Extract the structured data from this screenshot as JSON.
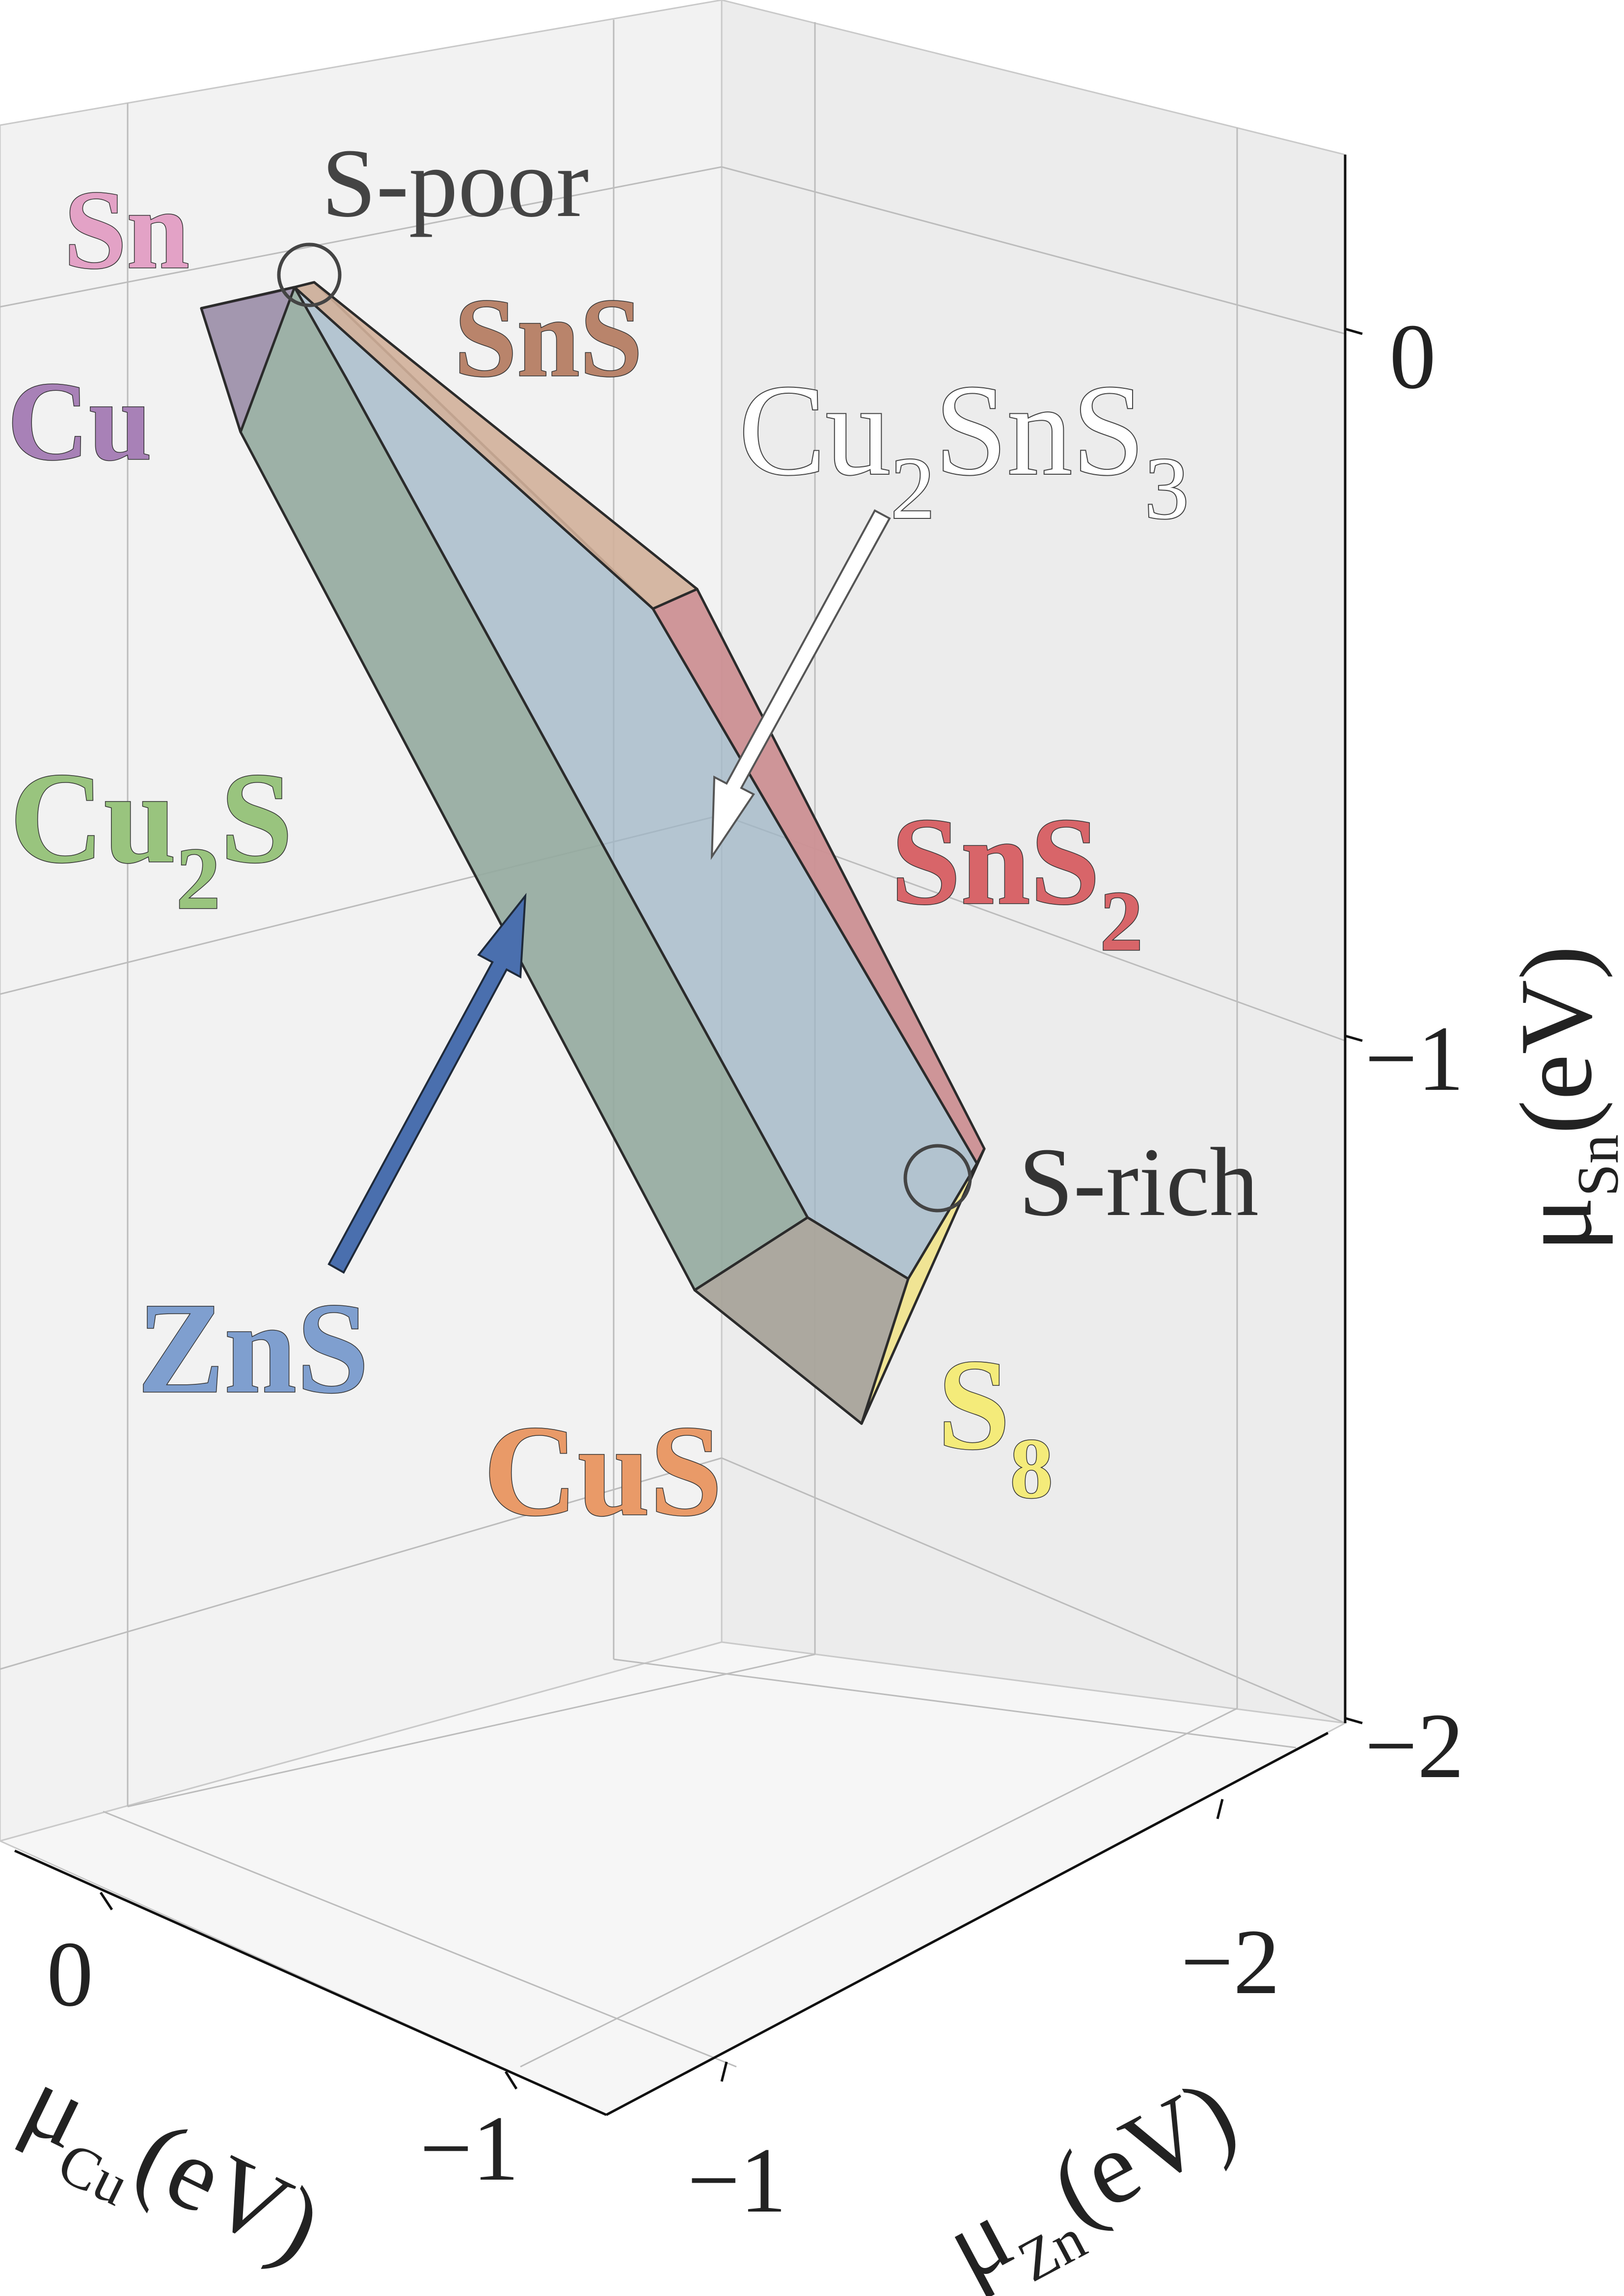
{
  "colors": {
    "Sn": "#e3a2c6",
    "SnS": "#b9846b",
    "Cu": "#a881b7",
    "Cu2SnS3": "#ffffff",
    "Cu2S": "#99c47e",
    "SnS2": "#d86569",
    "ZnS": "#7f9fcf",
    "ZnS_arrow": "#4a6fae",
    "CuS": "#e99a68",
    "S8": "#f4eb7a",
    "marker": "#444444",
    "axis_text": "#222222",
    "poly_main": "#9fb6c6",
    "poly_left": "#93aa9f",
    "poly_top": "#d2b09a",
    "poly_right": "#cc9093",
    "poly_bottom": "#a9a49b",
    "poly_tip": "#f0e48f"
  },
  "phases": {
    "Sn": "Sn",
    "SnS": "SnS",
    "Cu": "Cu",
    "Cu2SnS3": {
      "a": "Cu",
      "s1": "2",
      "b": "SnS",
      "s2": "3"
    },
    "Cu2S": {
      "a": "Cu",
      "s1": "2",
      "b": "S"
    },
    "SnS2": {
      "a": "SnS",
      "s1": "2"
    },
    "ZnS": "ZnS",
    "CuS": "CuS",
    "S8": {
      "a": "S",
      "s1": "8"
    }
  },
  "markers": {
    "s_poor": "S-poor",
    "s_rich": "S-rich"
  },
  "axes": {
    "x": {
      "symbol": "μ",
      "sub": "Cu",
      "unit": "(eV)",
      "ticks": [
        "0",
        "−1"
      ]
    },
    "y": {
      "symbol": "μ",
      "sub": "Zn",
      "unit": "(eV)",
      "ticks": [
        "−1",
        "−2"
      ]
    },
    "z": {
      "symbol": "μ",
      "sub": "Sn",
      "unit": "(eV)",
      "ticks": [
        "0",
        "−1",
        "−2"
      ]
    }
  }
}
